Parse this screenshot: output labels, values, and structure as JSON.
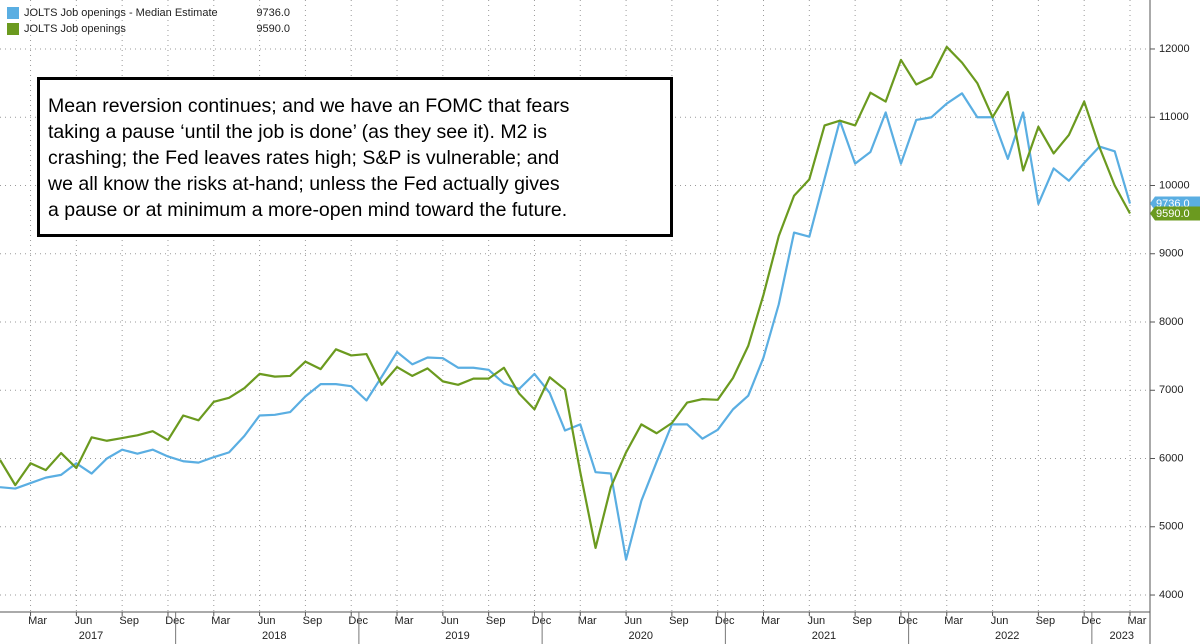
{
  "chart_data": {
    "type": "line",
    "x": [
      "2017-01",
      "2017-02",
      "2017-03",
      "2017-04",
      "2017-05",
      "2017-06",
      "2017-07",
      "2017-08",
      "2017-09",
      "2017-10",
      "2017-11",
      "2017-12",
      "2018-01",
      "2018-02",
      "2018-03",
      "2018-04",
      "2018-05",
      "2018-06",
      "2018-07",
      "2018-08",
      "2018-09",
      "2018-10",
      "2018-11",
      "2018-12",
      "2019-01",
      "2019-02",
      "2019-03",
      "2019-04",
      "2019-05",
      "2019-06",
      "2019-07",
      "2019-08",
      "2019-09",
      "2019-10",
      "2019-11",
      "2019-12",
      "2020-01",
      "2020-02",
      "2020-03",
      "2020-04",
      "2020-05",
      "2020-06",
      "2020-07",
      "2020-08",
      "2020-09",
      "2020-10",
      "2020-11",
      "2020-12",
      "2021-01",
      "2021-02",
      "2021-03",
      "2021-04",
      "2021-05",
      "2021-06",
      "2021-07",
      "2021-08",
      "2021-09",
      "2021-10",
      "2021-11",
      "2021-12",
      "2022-01",
      "2022-02",
      "2022-03",
      "2022-04",
      "2022-05",
      "2022-06",
      "2022-07",
      "2022-08",
      "2022-09",
      "2022-10",
      "2022-11",
      "2022-12",
      "2023-01",
      "2023-02",
      "2023-03"
    ],
    "series": [
      {
        "name": "JOLTS Job openings - Median Estimate",
        "color": "#5aaee2",
        "last": {
          "value": 9736.0,
          "label": "9736.0"
        },
        "values": [
          5580,
          5560,
          5640,
          5720,
          5760,
          5930,
          5780,
          6000,
          6130,
          6070,
          6130,
          6030,
          5960,
          5940,
          6020,
          6090,
          6330,
          6630,
          6640,
          6680,
          6910,
          7090,
          7090,
          7060,
          6850,
          7200,
          7560,
          7380,
          7480,
          7470,
          7330,
          7330,
          7300,
          7100,
          7020,
          7240,
          6960,
          6410,
          6500,
          5800,
          5780,
          4520,
          5380,
          5950,
          6500,
          6500,
          6290,
          6420,
          6720,
          6920,
          7480,
          8260,
          9310,
          9250,
          10100,
          10950,
          10320,
          10490,
          11070,
          10320,
          10960,
          11000,
          11200,
          11350,
          11000,
          11000,
          10390,
          11070,
          9730,
          10250,
          10070,
          10330,
          10570,
          10500,
          9736
        ]
      },
      {
        "name": "JOLTS Job openings",
        "color": "#6b9a1f",
        "last": {
          "value": 9590.0,
          "label": "9590.0"
        },
        "values": [
          5980,
          5610,
          5930,
          5830,
          6080,
          5860,
          6310,
          6260,
          6300,
          6340,
          6400,
          6270,
          6630,
          6560,
          6830,
          6890,
          7030,
          7240,
          7200,
          7210,
          7420,
          7310,
          7600,
          7510,
          7530,
          7080,
          7340,
          7210,
          7320,
          7130,
          7080,
          7170,
          7170,
          7330,
          6950,
          6720,
          7190,
          7010,
          5800,
          4690,
          5580,
          6090,
          6500,
          6370,
          6520,
          6820,
          6870,
          6860,
          7180,
          7650,
          8400,
          9260,
          9850,
          10090,
          10880,
          10950,
          10880,
          11360,
          11230,
          11840,
          11480,
          11590,
          12030,
          11800,
          11500,
          11000,
          11370,
          10220,
          10860,
          10470,
          10740,
          11230,
          10560,
          10000,
          9590
        ]
      }
    ],
    "xlim": [
      "2017-01",
      "2023-03"
    ],
    "xticks": [
      {
        "value": "2017-03",
        "label": "Mar"
      },
      {
        "value": "2017-06",
        "label": "Jun"
      },
      {
        "value": "2017-09",
        "label": "Sep"
      },
      {
        "value": "2017-12",
        "label": "Dec"
      },
      {
        "value": "2018-03",
        "label": "Mar"
      },
      {
        "value": "2018-06",
        "label": "Jun"
      },
      {
        "value": "2018-09",
        "label": "Sep"
      },
      {
        "value": "2018-12",
        "label": "Dec"
      },
      {
        "value": "2019-03",
        "label": "Mar"
      },
      {
        "value": "2019-06",
        "label": "Jun"
      },
      {
        "value": "2019-09",
        "label": "Sep"
      },
      {
        "value": "2019-12",
        "label": "Dec"
      },
      {
        "value": "2020-03",
        "label": "Mar"
      },
      {
        "value": "2020-06",
        "label": "Jun"
      },
      {
        "value": "2020-09",
        "label": "Sep"
      },
      {
        "value": "2020-12",
        "label": "Dec"
      },
      {
        "value": "2021-03",
        "label": "Mar"
      },
      {
        "value": "2021-06",
        "label": "Jun"
      },
      {
        "value": "2021-09",
        "label": "Sep"
      },
      {
        "value": "2021-12",
        "label": "Dec"
      },
      {
        "value": "2022-03",
        "label": "Mar"
      },
      {
        "value": "2022-06",
        "label": "Jun"
      },
      {
        "value": "2022-09",
        "label": "Sep"
      },
      {
        "value": "2022-12",
        "label": "Dec"
      },
      {
        "value": "2023-03",
        "label": "Mar"
      }
    ],
    "year_ticks": [
      2017,
      2018,
      2019,
      2020,
      2021,
      2022,
      2023
    ],
    "ylim": [
      3700,
      12700
    ],
    "yticks": [
      4000,
      5000,
      6000,
      7000,
      8000,
      9000,
      10000,
      11000,
      12000
    ],
    "grid": true,
    "legend": "upper left",
    "annotation_lines": [
      "Mean reversion continues; and we have an FOMC that fears",
      "taking a pause ‘until the job is done’ (as they see it). M2 is",
      "crashing; the Fed leaves rates high; S&P is vulnerable; and",
      "we all know the risks at-hand; unless the Fed actually gives",
      "a pause or at minimum a more-open mind toward the future."
    ]
  }
}
